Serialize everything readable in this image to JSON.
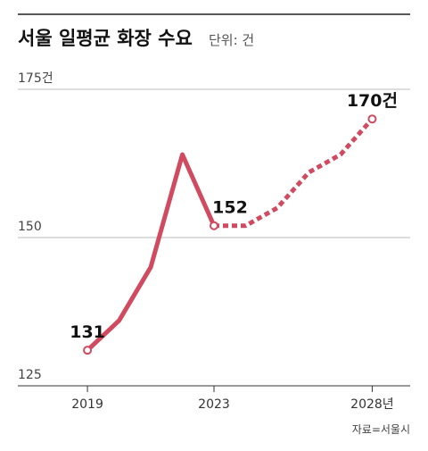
{
  "chart_data": {
    "type": "line",
    "title": "서울 일평균 화장 수요",
    "unit": "단위: 건",
    "source": "자료=서울시",
    "x": [
      2019,
      2020,
      2021,
      2022,
      2023,
      2024,
      2025,
      2026,
      2027,
      2028
    ],
    "series": [
      {
        "color": "#d04a60",
        "style": "solid",
        "values": [
          131,
          136,
          145,
          164,
          152,
          null,
          null,
          null,
          null,
          null
        ],
        "value_labels": [
          "131",
          null,
          null,
          null,
          "152",
          null,
          null,
          null,
          null,
          null
        ]
      },
      {
        "color": "#d04a60",
        "style": "dotted",
        "values": [
          null,
          null,
          null,
          null,
          152,
          152,
          155,
          161,
          164,
          170
        ],
        "value_labels": [
          null,
          null,
          null,
          null,
          null,
          null,
          null,
          null,
          null,
          "170건"
        ]
      }
    ],
    "xlim": [
      2016.8,
      2029.2
    ],
    "xticks": [
      2019,
      2023,
      {
        "value": 2028,
        "label": "2028년"
      }
    ],
    "ylim": [
      125,
      175
    ],
    "yticks": [
      {
        "value": 175,
        "label": "175건"
      },
      150,
      125
    ],
    "grid": true
  }
}
